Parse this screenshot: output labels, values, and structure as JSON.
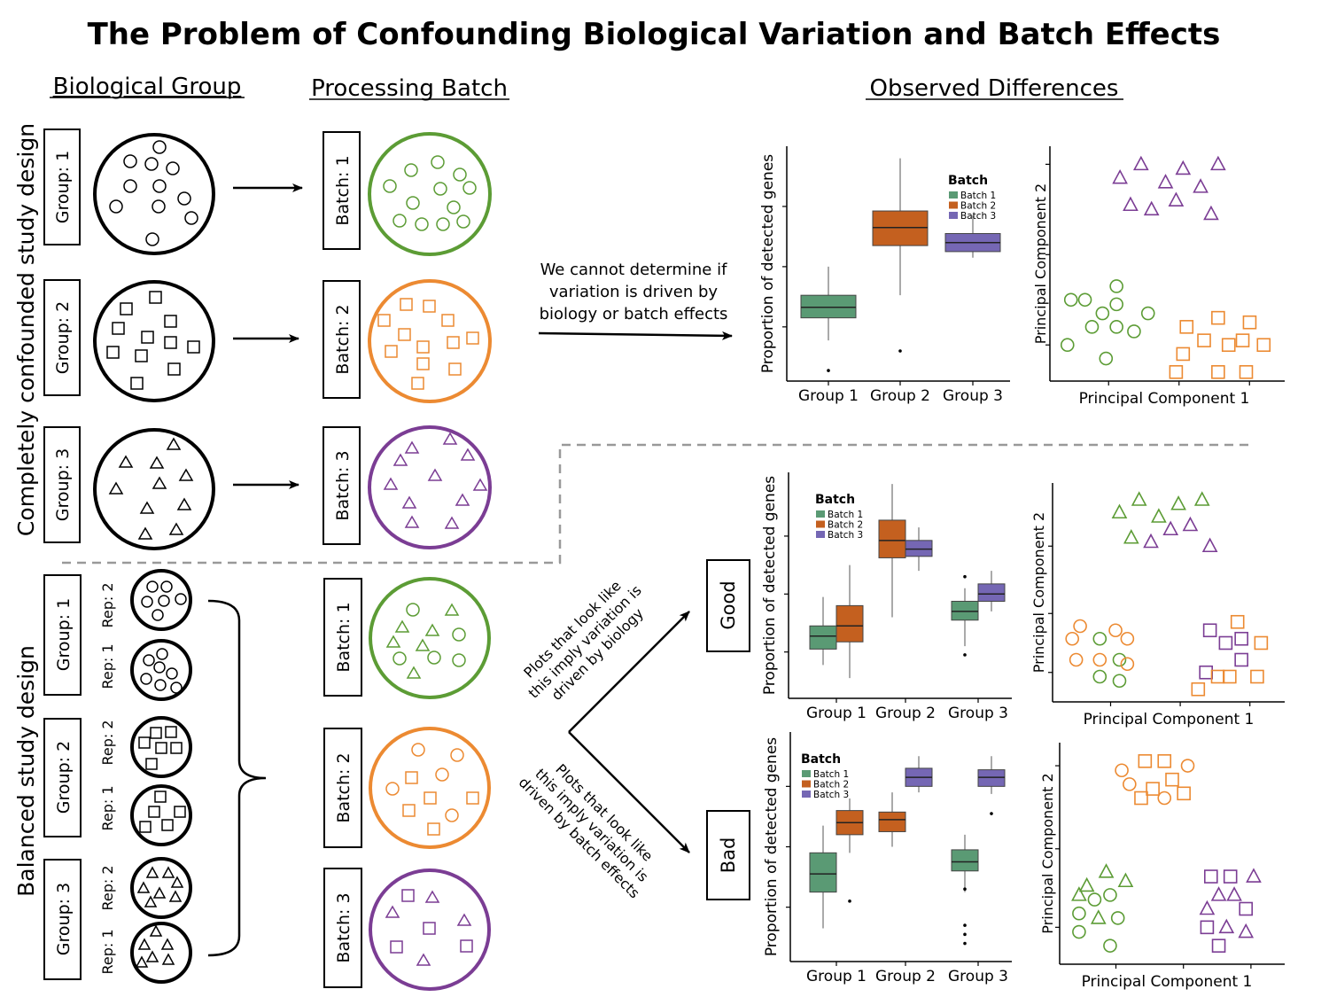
{
  "title": "The Problem of Confounding Biological Variation and Batch Effects",
  "headers": {
    "bio_group": "Biological Group",
    "batch": "Processing Batch",
    "observed": "Observed Differences"
  },
  "design_labels": {
    "confounded": "Completely confounded study design",
    "balanced": "Balanced study design"
  },
  "group_labels": [
    "Group: 1",
    "Group: 2",
    "Group: 3"
  ],
  "batch_labels": [
    "Batch: 1",
    "Batch: 2",
    "Batch: 3"
  ],
  "rep_labels": [
    "Rep: 2",
    "Rep: 1"
  ],
  "notes": {
    "cannot_line1": "We cannot determine if",
    "cannot_line2": "variation is driven by",
    "cannot_line3": "biology or batch effects",
    "good_line1": "Plots that look like",
    "good_line2": "this imply variation is",
    "good_line3": "driven by biology",
    "bad_line1": "Plots that look like",
    "bad_line2": "this imply variation is",
    "bad_line3": "driven by batch effects"
  },
  "verdicts": {
    "good": "Good",
    "bad": "Bad"
  },
  "colors": {
    "batch1": "#5a9a74",
    "batch2": "#c4601f",
    "batch3": "#7567b4",
    "green": "#5c9c35",
    "orange": "#ec8a32",
    "purple": "#7b3d94"
  },
  "chart_data": [
    {
      "type": "boxplot",
      "ylabel": "Proportion of detected genes",
      "legend_title": "Batch",
      "legend": [
        "Batch 1",
        "Batch 2",
        "Batch 3"
      ],
      "categories": [
        "Group 1",
        "Group 2",
        "Group 3"
      ],
      "boxes": [
        {
          "group": "Group 1",
          "batch": "Batch 1",
          "min": 0.55,
          "q1": 1.3,
          "median": 1.65,
          "q3": 2.05,
          "max": 3.0,
          "outliers": [
            -0.45
          ]
        },
        {
          "group": "Group 2",
          "batch": "Batch 2",
          "min": 2.05,
          "q1": 3.7,
          "median": 4.3,
          "q3": 4.85,
          "max": 6.6,
          "outliers": [
            0.2
          ]
        },
        {
          "group": "Group 3",
          "batch": "Batch 3",
          "min": 3.3,
          "q1": 3.5,
          "median": 3.8,
          "q3": 4.1,
          "max": 4.7,
          "outliers": []
        }
      ]
    },
    {
      "type": "scatter",
      "xlabel": "Principal Component 1",
      "ylabel": "Principal Component 2",
      "points": [
        {
          "x": 1.4,
          "y": 3.2,
          "shape": "triangle",
          "color": "purple"
        },
        {
          "x": 1.7,
          "y": 3.35,
          "shape": "triangle",
          "color": "purple"
        },
        {
          "x": 2.05,
          "y": 3.15,
          "shape": "triangle",
          "color": "purple"
        },
        {
          "x": 2.3,
          "y": 3.3,
          "shape": "triangle",
          "color": "purple"
        },
        {
          "x": 2.55,
          "y": 3.1,
          "shape": "triangle",
          "color": "purple"
        },
        {
          "x": 2.8,
          "y": 3.35,
          "shape": "triangle",
          "color": "purple"
        },
        {
          "x": 1.55,
          "y": 2.9,
          "shape": "triangle",
          "color": "purple"
        },
        {
          "x": 1.85,
          "y": 2.85,
          "shape": "triangle",
          "color": "purple"
        },
        {
          "x": 2.2,
          "y": 2.95,
          "shape": "triangle",
          "color": "purple"
        },
        {
          "x": 2.7,
          "y": 2.8,
          "shape": "triangle",
          "color": "purple"
        },
        {
          "x": 0.7,
          "y": 1.85,
          "shape": "circle",
          "color": "green"
        },
        {
          "x": 0.9,
          "y": 1.85,
          "shape": "circle",
          "color": "green"
        },
        {
          "x": 1.15,
          "y": 1.7,
          "shape": "circle",
          "color": "green"
        },
        {
          "x": 1.35,
          "y": 1.8,
          "shape": "circle",
          "color": "green"
        },
        {
          "x": 1.35,
          "y": 2.0,
          "shape": "circle",
          "color": "green"
        },
        {
          "x": 1.0,
          "y": 1.55,
          "shape": "circle",
          "color": "green"
        },
        {
          "x": 1.35,
          "y": 1.55,
          "shape": "circle",
          "color": "green"
        },
        {
          "x": 1.6,
          "y": 1.5,
          "shape": "circle",
          "color": "green"
        },
        {
          "x": 1.8,
          "y": 1.7,
          "shape": "circle",
          "color": "green"
        },
        {
          "x": 0.65,
          "y": 1.35,
          "shape": "circle",
          "color": "green"
        },
        {
          "x": 1.2,
          "y": 1.2,
          "shape": "circle",
          "color": "green"
        },
        {
          "x": 2.35,
          "y": 1.55,
          "shape": "square",
          "color": "orange"
        },
        {
          "x": 2.8,
          "y": 1.65,
          "shape": "square",
          "color": "orange"
        },
        {
          "x": 3.25,
          "y": 1.6,
          "shape": "square",
          "color": "orange"
        },
        {
          "x": 2.6,
          "y": 1.4,
          "shape": "square",
          "color": "orange"
        },
        {
          "x": 2.95,
          "y": 1.35,
          "shape": "square",
          "color": "orange"
        },
        {
          "x": 3.15,
          "y": 1.4,
          "shape": "square",
          "color": "orange"
        },
        {
          "x": 3.45,
          "y": 1.35,
          "shape": "square",
          "color": "orange"
        },
        {
          "x": 2.3,
          "y": 1.25,
          "shape": "square",
          "color": "orange"
        },
        {
          "x": 2.2,
          "y": 1.05,
          "shape": "square",
          "color": "orange"
        },
        {
          "x": 2.8,
          "y": 1.05,
          "shape": "square",
          "color": "orange"
        },
        {
          "x": 3.2,
          "y": 1.05,
          "shape": "square",
          "color": "orange"
        }
      ]
    },
    {
      "type": "boxplot",
      "ylabel": "Proportion of detected genes",
      "legend_title": "Batch",
      "legend": [
        "Batch 1",
        "Batch 2",
        "Batch 3"
      ],
      "categories": [
        "Group 1",
        "Group 2",
        "Group 3"
      ],
      "boxes": [
        {
          "group": "Group 1",
          "batch": "Batch 1",
          "min": 0.55,
          "q1": 1.1,
          "median": 1.55,
          "q3": 1.9,
          "max": 2.9,
          "outliers": []
        },
        {
          "group": "Group 1",
          "batch": "Batch 2",
          "min": 0.1,
          "q1": 1.35,
          "median": 1.9,
          "q3": 2.6,
          "max": 4.0,
          "outliers": []
        },
        {
          "group": "Group 2",
          "batch": "Batch 2",
          "min": 2.2,
          "q1": 4.25,
          "median": 4.85,
          "q3": 5.55,
          "max": 6.8,
          "outliers": []
        },
        {
          "group": "Group 2",
          "batch": "Batch 3",
          "min": 3.8,
          "q1": 4.3,
          "median": 4.55,
          "q3": 4.85,
          "max": 5.3,
          "outliers": []
        },
        {
          "group": "Group 3",
          "batch": "Batch 1",
          "min": 1.2,
          "q1": 2.1,
          "median": 2.4,
          "q3": 2.75,
          "max": 3.2,
          "outliers": [
            0.9,
            3.6
          ]
        },
        {
          "group": "Group 3",
          "batch": "Batch 3",
          "min": 2.4,
          "q1": 2.75,
          "median": 3.0,
          "q3": 3.35,
          "max": 3.8,
          "outliers": []
        }
      ]
    },
    {
      "type": "scatter",
      "xlabel": "Principal Component 1",
      "ylabel": "Principal Component 2",
      "points": [
        {
          "x": 1.2,
          "y": 3.25,
          "shape": "triangle",
          "color": "green"
        },
        {
          "x": 1.45,
          "y": 3.4,
          "shape": "triangle",
          "color": "green"
        },
        {
          "x": 1.7,
          "y": 3.2,
          "shape": "triangle",
          "color": "green"
        },
        {
          "x": 1.95,
          "y": 3.35,
          "shape": "triangle",
          "color": "green"
        },
        {
          "x": 2.25,
          "y": 3.4,
          "shape": "triangle",
          "color": "green"
        },
        {
          "x": 1.35,
          "y": 2.95,
          "shape": "triangle",
          "color": "green"
        },
        {
          "x": 1.6,
          "y": 2.9,
          "shape": "triangle",
          "color": "purple"
        },
        {
          "x": 1.85,
          "y": 3.05,
          "shape": "triangle",
          "color": "purple"
        },
        {
          "x": 2.1,
          "y": 3.1,
          "shape": "triangle",
          "color": "purple"
        },
        {
          "x": 2.35,
          "y": 2.85,
          "shape": "triangle",
          "color": "purple"
        },
        {
          "x": 0.7,
          "y": 1.9,
          "shape": "circle",
          "color": "orange"
        },
        {
          "x": 0.6,
          "y": 1.75,
          "shape": "circle",
          "color": "orange"
        },
        {
          "x": 0.95,
          "y": 1.75,
          "shape": "circle",
          "color": "green"
        },
        {
          "x": 1.15,
          "y": 1.85,
          "shape": "circle",
          "color": "orange"
        },
        {
          "x": 1.3,
          "y": 1.75,
          "shape": "circle",
          "color": "orange"
        },
        {
          "x": 0.65,
          "y": 1.5,
          "shape": "circle",
          "color": "orange"
        },
        {
          "x": 0.95,
          "y": 1.5,
          "shape": "circle",
          "color": "orange"
        },
        {
          "x": 1.2,
          "y": 1.5,
          "shape": "circle",
          "color": "green"
        },
        {
          "x": 1.3,
          "y": 1.45,
          "shape": "circle",
          "color": "orange"
        },
        {
          "x": 0.95,
          "y": 1.3,
          "shape": "circle",
          "color": "green"
        },
        {
          "x": 1.2,
          "y": 1.25,
          "shape": "circle",
          "color": "green"
        },
        {
          "x": 2.35,
          "y": 1.85,
          "shape": "square",
          "color": "purple"
        },
        {
          "x": 2.7,
          "y": 1.95,
          "shape": "square",
          "color": "orange"
        },
        {
          "x": 2.55,
          "y": 1.7,
          "shape": "square",
          "color": "purple"
        },
        {
          "x": 2.75,
          "y": 1.75,
          "shape": "square",
          "color": "purple"
        },
        {
          "x": 3.0,
          "y": 1.7,
          "shape": "square",
          "color": "orange"
        },
        {
          "x": 2.75,
          "y": 1.5,
          "shape": "square",
          "color": "purple"
        },
        {
          "x": 2.3,
          "y": 1.35,
          "shape": "square",
          "color": "purple"
        },
        {
          "x": 2.45,
          "y": 1.3,
          "shape": "square",
          "color": "orange"
        },
        {
          "x": 2.6,
          "y": 1.3,
          "shape": "square",
          "color": "orange"
        },
        {
          "x": 2.95,
          "y": 1.3,
          "shape": "square",
          "color": "orange"
        },
        {
          "x": 2.2,
          "y": 1.15,
          "shape": "square",
          "color": "orange"
        }
      ]
    },
    {
      "type": "boxplot",
      "ylabel": "Proportion of detected genes",
      "legend_title": "Batch",
      "legend": [
        "Batch 1",
        "Batch 2",
        "Batch 3"
      ],
      "categories": [
        "Group 1",
        "Group 2",
        "Group 3"
      ],
      "boxes": [
        {
          "group": "Group 1",
          "batch": "Batch 1",
          "min": 0.3,
          "q1": 1.5,
          "median": 2.1,
          "q3": 2.8,
          "max": 3.7,
          "outliers": []
        },
        {
          "group": "Group 1",
          "batch": "Batch 2",
          "min": 2.8,
          "q1": 3.4,
          "median": 3.8,
          "q3": 4.2,
          "max": 4.6,
          "outliers": [
            1.2
          ]
        },
        {
          "group": "Group 2",
          "batch": "Batch 2",
          "min": 3.0,
          "q1": 3.5,
          "median": 3.9,
          "q3": 4.15,
          "max": 4.8,
          "outliers": []
        },
        {
          "group": "Group 2",
          "batch": "Batch 3",
          "min": 4.8,
          "q1": 5.0,
          "median": 5.3,
          "q3": 5.6,
          "max": 6.0,
          "outliers": []
        },
        {
          "group": "Group 3",
          "batch": "Batch 1",
          "min": 1.5,
          "q1": 2.2,
          "median": 2.5,
          "q3": 2.9,
          "max": 3.4,
          "outliers": [
            0.4,
            0.1,
            -0.2,
            1.6
          ]
        },
        {
          "group": "Group 3",
          "batch": "Batch 3",
          "min": 4.75,
          "q1": 5.0,
          "median": 5.3,
          "q3": 5.55,
          "max": 6.0,
          "outliers": [
            4.1
          ]
        }
      ]
    },
    {
      "type": "scatter",
      "xlabel": "Principal Component 1",
      "ylabel": "Principal Component 2",
      "points": [
        {
          "x": 1.15,
          "y": 3.3,
          "shape": "circle",
          "color": "orange"
        },
        {
          "x": 1.45,
          "y": 3.4,
          "shape": "square",
          "color": "orange"
        },
        {
          "x": 1.7,
          "y": 3.4,
          "shape": "square",
          "color": "orange"
        },
        {
          "x": 2.0,
          "y": 3.35,
          "shape": "circle",
          "color": "orange"
        },
        {
          "x": 1.25,
          "y": 3.15,
          "shape": "circle",
          "color": "orange"
        },
        {
          "x": 1.55,
          "y": 3.1,
          "shape": "square",
          "color": "orange"
        },
        {
          "x": 1.8,
          "y": 3.2,
          "shape": "square",
          "color": "orange"
        },
        {
          "x": 1.7,
          "y": 3.0,
          "shape": "circle",
          "color": "orange"
        },
        {
          "x": 1.95,
          "y": 3.05,
          "shape": "square",
          "color": "orange"
        },
        {
          "x": 1.4,
          "y": 3.0,
          "shape": "square",
          "color": "orange"
        },
        {
          "x": 0.7,
          "y": 2.05,
          "shape": "triangle",
          "color": "green"
        },
        {
          "x": 0.95,
          "y": 2.2,
          "shape": "triangle",
          "color": "green"
        },
        {
          "x": 1.2,
          "y": 2.1,
          "shape": "triangle",
          "color": "green"
        },
        {
          "x": 0.6,
          "y": 1.95,
          "shape": "triangle",
          "color": "green"
        },
        {
          "x": 0.8,
          "y": 1.9,
          "shape": "circle",
          "color": "green"
        },
        {
          "x": 1.0,
          "y": 1.95,
          "shape": "circle",
          "color": "green"
        },
        {
          "x": 0.6,
          "y": 1.75,
          "shape": "circle",
          "color": "green"
        },
        {
          "x": 0.85,
          "y": 1.7,
          "shape": "triangle",
          "color": "green"
        },
        {
          "x": 1.1,
          "y": 1.7,
          "shape": "circle",
          "color": "green"
        },
        {
          "x": 0.6,
          "y": 1.55,
          "shape": "circle",
          "color": "green"
        },
        {
          "x": 1.0,
          "y": 1.4,
          "shape": "circle",
          "color": "green"
        },
        {
          "x": 2.3,
          "y": 2.15,
          "shape": "square",
          "color": "purple"
        },
        {
          "x": 2.55,
          "y": 2.15,
          "shape": "square",
          "color": "purple"
        },
        {
          "x": 2.85,
          "y": 2.15,
          "shape": "triangle",
          "color": "purple"
        },
        {
          "x": 2.4,
          "y": 1.95,
          "shape": "triangle",
          "color": "purple"
        },
        {
          "x": 2.6,
          "y": 1.95,
          "shape": "triangle",
          "color": "purple"
        },
        {
          "x": 2.25,
          "y": 1.8,
          "shape": "triangle",
          "color": "purple"
        },
        {
          "x": 2.75,
          "y": 1.8,
          "shape": "square",
          "color": "purple"
        },
        {
          "x": 2.25,
          "y": 1.6,
          "shape": "square",
          "color": "purple"
        },
        {
          "x": 2.5,
          "y": 1.6,
          "shape": "triangle",
          "color": "purple"
        },
        {
          "x": 2.75,
          "y": 1.55,
          "shape": "triangle",
          "color": "purple"
        },
        {
          "x": 2.4,
          "y": 1.4,
          "shape": "square",
          "color": "purple"
        }
      ]
    }
  ]
}
